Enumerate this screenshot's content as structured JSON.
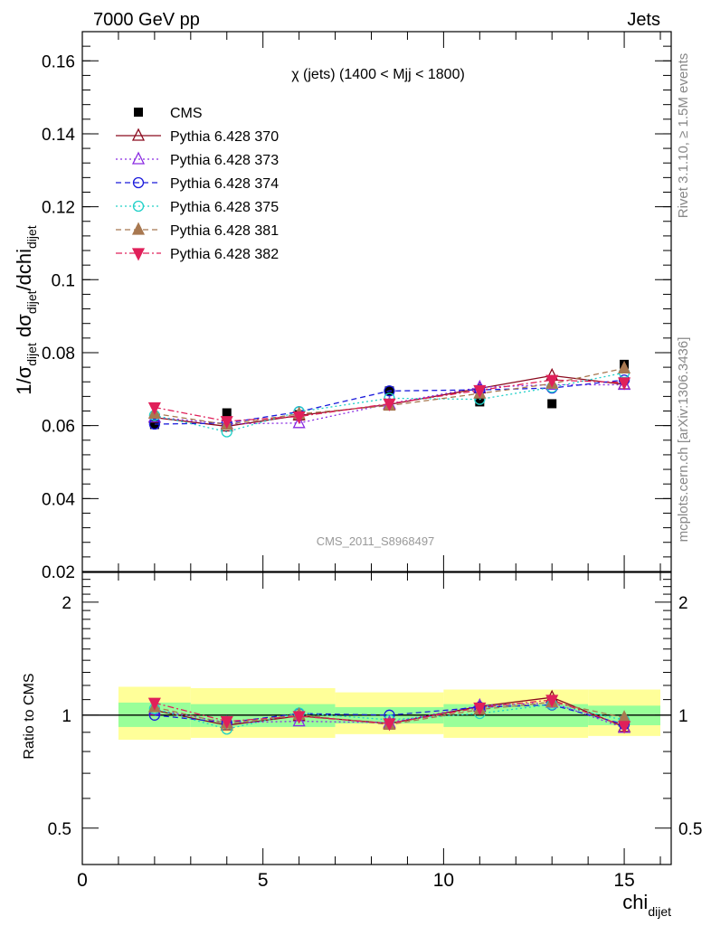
{
  "header": {
    "left": "7000 GeV pp",
    "right": "Jets"
  },
  "side_labels": {
    "rivet": "Rivet 3.1.10, ≥ 1.5M events",
    "mcplots": "mcplots.cern.ch [arXiv:1306.3436]"
  },
  "watermark": "CMS_2011_S8968497",
  "ratio_label": "Ratio to CMS",
  "chart_data": [
    {
      "type": "scatter",
      "title": "χ (jets) (1400 < Mjj < 1800)",
      "ylabel": "1/σdijet dσdijet/dchidijet",
      "xlabel": "chidijet",
      "xlim": [
        0,
        16.3
      ],
      "ylim": [
        0.02,
        0.168
      ],
      "xticks": [
        0,
        5,
        10,
        15
      ],
      "yticks": [
        0.02,
        0.04,
        0.06,
        0.08,
        0.1,
        0.12,
        0.14,
        0.16
      ],
      "ytick_labels": [
        "0.02",
        "0.04",
        "0.06",
        "0.08",
        "0.1",
        "0.12",
        "0.14",
        "0.16"
      ],
      "legend_position": "top-left",
      "x": [
        2,
        4,
        6,
        8.5,
        11,
        13,
        15
      ],
      "series": [
        {
          "name": "CMS",
          "color": "#000000",
          "marker": "square",
          "line": "none",
          "values": [
            0.0603,
            0.0635,
            0.063,
            0.0695,
            0.0665,
            0.066,
            0.0768
          ]
        },
        {
          "name": "Pythia 6.428 370",
          "color": "#8b0a1e",
          "marker": "triangle-open",
          "line": "solid",
          "values": [
            0.0622,
            0.0598,
            0.0628,
            0.0658,
            0.0702,
            0.0737,
            0.0713
          ]
        },
        {
          "name": "Pythia 6.428 373",
          "color": "#8a2be2",
          "marker": "triangle-open",
          "line": "dotted",
          "values": [
            0.0623,
            0.0605,
            0.0607,
            0.066,
            0.0705,
            0.0712,
            0.0712
          ]
        },
        {
          "name": "Pythia 6.428 374",
          "color": "#1a1adb",
          "marker": "circle-open",
          "line": "dashed",
          "values": [
            0.0604,
            0.0607,
            0.0638,
            0.0695,
            0.0698,
            0.0703,
            0.0725
          ]
        },
        {
          "name": "Pythia 6.428 375",
          "color": "#20d0c8",
          "marker": "circle-open",
          "line": "dotted",
          "values": [
            0.0628,
            0.0583,
            0.0638,
            0.0675,
            0.0672,
            0.0705,
            0.0745
          ]
        },
        {
          "name": "Pythia 6.428 381",
          "color": "#a87850",
          "marker": "triangle",
          "line": "dashed",
          "values": [
            0.0633,
            0.0603,
            0.0632,
            0.0655,
            0.0688,
            0.0715,
            0.0757
          ]
        },
        {
          "name": "Pythia 6.428 382",
          "color": "#e0205a",
          "marker": "triangle-down",
          "line": "dashdot",
          "values": [
            0.065,
            0.0612,
            0.0625,
            0.066,
            0.0697,
            0.0725,
            0.0718
          ]
        }
      ]
    },
    {
      "type": "scatter",
      "title": "",
      "ylabel": "Ratio to CMS",
      "xlabel": "chidijet",
      "xlim": [
        0,
        16.3
      ],
      "ylim": [
        0.4,
        2.4
      ],
      "yscale": "log",
      "xticks": [
        0,
        5,
        10,
        15
      ],
      "xtick_labels": [
        "0",
        "5",
        "10",
        "15"
      ],
      "yticks": [
        0.5,
        1,
        2
      ],
      "ytick_labels": [
        "0.5",
        "1",
        "2"
      ],
      "reference_line": 1,
      "bands": {
        "bins": [
          [
            1,
            3
          ],
          [
            3,
            7
          ],
          [
            7,
            10
          ],
          [
            10,
            14
          ],
          [
            14,
            16
          ]
        ],
        "inner": [
          [
            0.93,
            1.08
          ],
          [
            0.93,
            1.07
          ],
          [
            0.95,
            1.05
          ],
          [
            0.93,
            1.07
          ],
          [
            0.94,
            1.06
          ]
        ],
        "outer": [
          [
            0.86,
            1.19
          ],
          [
            0.87,
            1.18
          ],
          [
            0.89,
            1.15
          ],
          [
            0.87,
            1.17
          ],
          [
            0.88,
            1.17
          ]
        ],
        "inner_color": "#99ff99",
        "outer_color": "#ffff99"
      },
      "x": [
        2,
        4,
        6,
        8.5,
        11,
        13,
        15
      ],
      "series": [
        {
          "name": "Pythia 6.428 370",
          "values": [
            1.03,
            0.94,
            0.995,
            0.95,
            1.055,
            1.115,
            0.93
          ]
        },
        {
          "name": "Pythia 6.428 373",
          "values": [
            1.035,
            0.955,
            0.963,
            0.955,
            1.06,
            1.08,
            0.925
          ]
        },
        {
          "name": "Pythia 6.428 374",
          "values": [
            1.0,
            0.955,
            1.01,
            1.0,
            1.05,
            1.065,
            0.945
          ]
        },
        {
          "name": "Pythia 6.428 375",
          "values": [
            1.04,
            0.918,
            1.013,
            0.972,
            1.01,
            1.068,
            0.97
          ]
        },
        {
          "name": "Pythia 6.428 381",
          "values": [
            1.05,
            0.95,
            1.003,
            0.943,
            1.035,
            1.083,
            0.985
          ]
        },
        {
          "name": "Pythia 6.428 382",
          "values": [
            1.078,
            0.963,
            0.993,
            0.95,
            1.047,
            1.098,
            0.935
          ]
        }
      ]
    }
  ]
}
